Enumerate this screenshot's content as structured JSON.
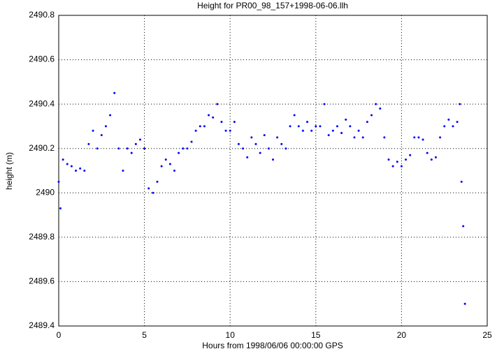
{
  "chart_data": {
    "type": "scatter",
    "title": "Height for PR00_98_157+1998-06-06.llh",
    "x_label": "Hours from 1998/06/06 00:00:00 GPS",
    "y_label": "height (m)",
    "color": "#0000ff",
    "grid": true,
    "xlim": [
      0,
      25
    ],
    "xticks": [
      0,
      5,
      10,
      15,
      20,
      25
    ],
    "ylim": [
      2489.4,
      2490.8
    ],
    "yticks": [
      2489.4,
      2489.6,
      2489.8,
      2490,
      2490.2,
      2490.4,
      2490.6,
      2490.8
    ],
    "x": [
      0,
      0.1,
      0.25,
      0.5,
      0.75,
      1.0,
      1.25,
      1.5,
      1.75,
      2.0,
      2.25,
      2.5,
      2.75,
      3.0,
      3.25,
      3.5,
      3.75,
      4.0,
      4.25,
      4.5,
      4.75,
      5.0,
      5.25,
      5.5,
      5.75,
      6.0,
      6.25,
      6.5,
      6.75,
      7.0,
      7.25,
      7.5,
      7.75,
      8.0,
      8.25,
      8.5,
      8.75,
      9.0,
      9.25,
      9.5,
      9.75,
      10.0,
      10.25,
      10.5,
      10.75,
      11.0,
      11.25,
      11.5,
      11.75,
      12.0,
      12.25,
      12.5,
      12.75,
      13.0,
      13.25,
      13.5,
      13.75,
      14.0,
      14.25,
      14.5,
      14.75,
      15.0,
      15.25,
      15.5,
      15.75,
      16.0,
      16.25,
      16.5,
      16.75,
      17.0,
      17.25,
      17.5,
      17.75,
      18.0,
      18.25,
      18.5,
      18.75,
      19.0,
      19.25,
      19.5,
      19.75,
      20.0,
      20.25,
      20.5,
      20.75,
      21.0,
      21.25,
      21.5,
      21.75,
      22.0,
      22.25,
      22.5,
      22.75,
      23.0,
      23.25,
      23.4,
      23.5,
      23.6,
      23.7
    ],
    "values": [
      2490.05,
      2489.93,
      2490.15,
      2490.13,
      2490.12,
      2490.1,
      2490.11,
      2490.1,
      2490.22,
      2490.28,
      2490.2,
      2490.26,
      2490.3,
      2490.35,
      2490.45,
      2490.2,
      2490.1,
      2490.2,
      2490.18,
      2490.22,
      2490.24,
      2490.2,
      2490.02,
      2490.0,
      2490.05,
      2490.12,
      2490.15,
      2490.13,
      2490.1,
      2490.18,
      2490.2,
      2490.2,
      2490.23,
      2490.28,
      2490.3,
      2490.3,
      2490.35,
      2490.34,
      2490.4,
      2490.32,
      2490.28,
      2490.28,
      2490.32,
      2490.22,
      2490.2,
      2490.16,
      2490.25,
      2490.22,
      2490.18,
      2490.26,
      2490.2,
      2490.15,
      2490.25,
      2490.22,
      2490.2,
      2490.3,
      2490.35,
      2490.3,
      2490.28,
      2490.32,
      2490.28,
      2490.3,
      2490.3,
      2490.4,
      2490.26,
      2490.28,
      2490.3,
      2490.27,
      2490.33,
      2490.3,
      2490.25,
      2490.28,
      2490.25,
      2490.32,
      2490.35,
      2490.4,
      2490.38,
      2490.25,
      2490.15,
      2490.12,
      2490.14,
      2490.12,
      2490.15,
      2490.17,
      2490.25,
      2490.25,
      2490.24,
      2490.18,
      2490.15,
      2490.16,
      2490.25,
      2490.3,
      2490.33,
      2490.3,
      2490.32,
      2490.4,
      2490.05,
      2489.85,
      2489.5
    ]
  }
}
